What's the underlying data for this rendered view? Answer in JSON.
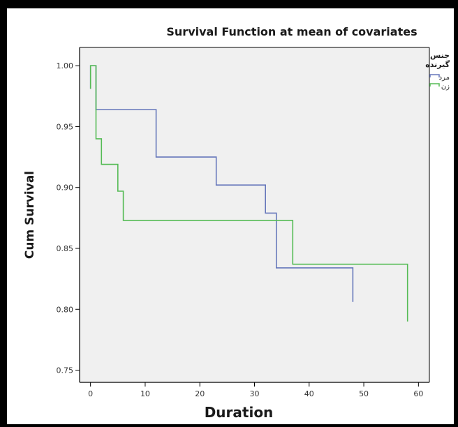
{
  "chart_data": {
    "type": "line",
    "title": "Survival Function at mean of covariates",
    "xlabel": "Duration",
    "ylabel": "Cum Survival",
    "xlim": [
      -2,
      62
    ],
    "ylim": [
      0.74,
      1.015
    ],
    "x_ticks": [
      "0",
      "10",
      "20",
      "30",
      "40",
      "50",
      "60"
    ],
    "y_ticks": [
      "0.75",
      "0.80",
      "0.85",
      "0.90",
      "0.95",
      "1.00"
    ],
    "grid": false,
    "step": true,
    "legend": {
      "title": "جنس گیرنده",
      "position": "right"
    },
    "series": [
      {
        "name": "مرد",
        "color": "#6677bb",
        "x": [
          0,
          0,
          1,
          1,
          12,
          12,
          23,
          23,
          32,
          32,
          34,
          34,
          48,
          48
        ],
        "y": [
          0.981,
          1.0,
          1.0,
          0.964,
          0.964,
          0.925,
          0.925,
          0.902,
          0.902,
          0.879,
          0.879,
          0.834,
          0.834,
          0.806
        ]
      },
      {
        "name": "زن",
        "color": "#55bb55",
        "x": [
          0,
          0,
          1,
          1,
          2,
          2,
          5,
          5,
          6,
          6,
          37,
          37,
          58,
          58
        ],
        "y": [
          0.981,
          1.0,
          1.0,
          0.94,
          0.94,
          0.919,
          0.919,
          0.897,
          0.897,
          0.873,
          0.873,
          0.837,
          0.837,
          0.79
        ]
      }
    ]
  }
}
